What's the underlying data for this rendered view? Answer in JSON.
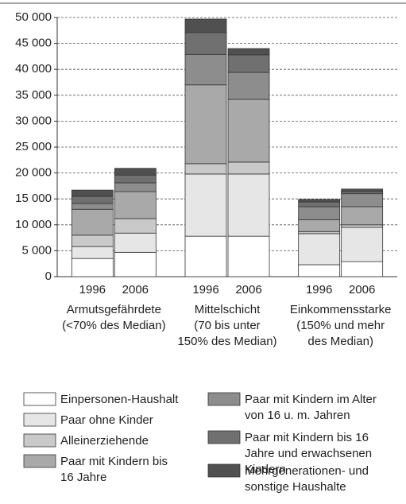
{
  "chart_data": {
    "type": "stacked_bar",
    "categories": [
      "1996",
      "2006",
      "1996",
      "2006",
      "1996",
      "2006"
    ],
    "groups": [
      [
        "Armutsgefährdete",
        "(<70% des Median)"
      ],
      [
        "Mittelschicht",
        "(70 bis  unter",
        "150% des Median)"
      ],
      [
        "Einkommensstarke",
        "(150% und mehr",
        "des Median)"
      ]
    ],
    "ylim": [
      0,
      50000
    ],
    "yticks": [
      0,
      {
        "value": 5000,
        "label": "5 000"
      },
      {
        "value": 10000,
        "label": "10 000"
      },
      {
        "value": 15000,
        "label": "15 000"
      },
      {
        "value": 20000,
        "label": "20 000"
      },
      {
        "value": 25000,
        "label": "25 000"
      },
      {
        "value": 30000,
        "label": "30 000"
      },
      {
        "value": 35000,
        "label": "35 000"
      },
      {
        "value": 40000,
        "label": "40 000"
      },
      {
        "value": 45000,
        "label": "45 000"
      },
      {
        "value": 50000,
        "label": "50 000"
      }
    ],
    "grid": true,
    "series": [
      {
        "name": [
          "Einpersonen-Haushalt"
        ],
        "color": "#ffffff",
        "values": [
          3500,
          4700,
          7800,
          7800,
          2300,
          2900
        ]
      },
      {
        "name": [
          "Paar ohne Kinder"
        ],
        "color": "#e6e6e6",
        "values": [
          2300,
          3700,
          12000,
          12000,
          6000,
          6600
        ]
      },
      {
        "name": [
          "Alleinerziehende"
        ],
        "color": "#c9c9c9",
        "values": [
          2200,
          2800,
          2000,
          2300,
          400,
          500
        ]
      },
      {
        "name": [
          "Paar mit Kindern bis",
          "16 Jahre"
        ],
        "color": "#a9a9a9",
        "values": [
          5000,
          5200,
          15200,
          12100,
          2300,
          3500
        ]
      },
      {
        "name": [
          "Paar mit Kindern im Alter",
          "von 16 u. m. Jahren"
        ],
        "color": "#8d8d8d",
        "values": [
          1100,
          1700,
          5900,
          5200,
          2500,
          2500
        ]
      },
      {
        "name": [
          "Paar mit Kindern bis 16",
          "Jahre und erwachsenen",
          "Kindern"
        ],
        "color": "#707070",
        "values": [
          1400,
          1500,
          4200,
          3400,
          900,
          400
        ]
      },
      {
        "name": [
          "Mehrgenerationen- und",
          "sonstige Haushalte"
        ],
        "color": "#505050",
        "values": [
          1200,
          1300,
          2600,
          1200,
          500,
          500
        ]
      }
    ]
  }
}
